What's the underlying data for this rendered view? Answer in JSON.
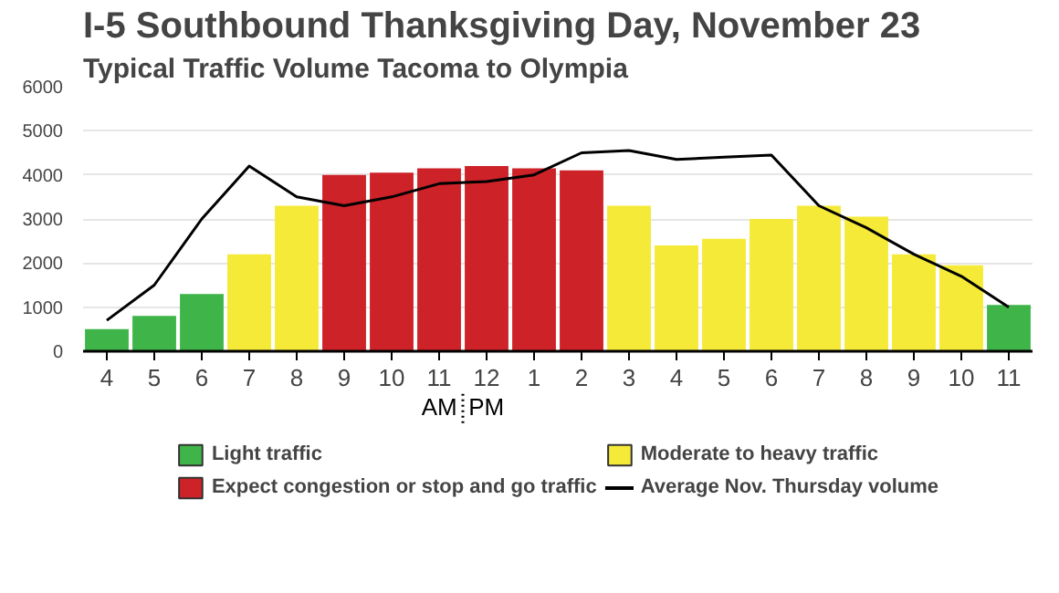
{
  "chart_data": {
    "type": "bar",
    "title": "I-5 Southbound Thanksgiving Day, November 23",
    "subtitle": "Typical Traffic Volume Tacoma to Olympia",
    "categories": [
      "4",
      "5",
      "6",
      "7",
      "8",
      "9",
      "10",
      "11",
      "12",
      "1",
      "2",
      "3",
      "4",
      "5",
      "6",
      "7",
      "8",
      "9",
      "10",
      "11"
    ],
    "series": [
      {
        "name": "Light traffic",
        "color": "#3fb549",
        "values": [
          500,
          800,
          1300,
          null,
          null,
          null,
          null,
          null,
          null,
          null,
          null,
          null,
          null,
          null,
          null,
          null,
          null,
          null,
          null,
          1050
        ]
      },
      {
        "name": "Moderate to heavy traffic",
        "color": "#f5ea38",
        "values": [
          null,
          null,
          null,
          2200,
          3300,
          null,
          null,
          null,
          null,
          null,
          null,
          3300,
          2400,
          2550,
          3000,
          3300,
          3050,
          2200,
          1950,
          null
        ]
      },
      {
        "name": "Expect congestion or stop and go traffic",
        "color": "#cd2228",
        "values": [
          null,
          null,
          null,
          null,
          null,
          4000,
          4050,
          4150,
          4200,
          4150,
          4100,
          null,
          null,
          null,
          null,
          null,
          null,
          null,
          null,
          null
        ]
      },
      {
        "name": "Average Nov. Thursday volume",
        "type": "line",
        "color": "#000000",
        "values": [
          700,
          1500,
          3000,
          4200,
          3500,
          3300,
          3500,
          3800,
          3850,
          4000,
          4500,
          4550,
          4350,
          4400,
          4450,
          3300,
          2800,
          2200,
          1700,
          1000
        ]
      }
    ],
    "annotations": [
      "AM",
      "PM"
    ],
    "ylim": [
      0,
      6000
    ],
    "yticks": [
      0,
      1000,
      2000,
      3000,
      4000,
      5000,
      6000
    ],
    "grid": "y",
    "legend": "bottom"
  }
}
